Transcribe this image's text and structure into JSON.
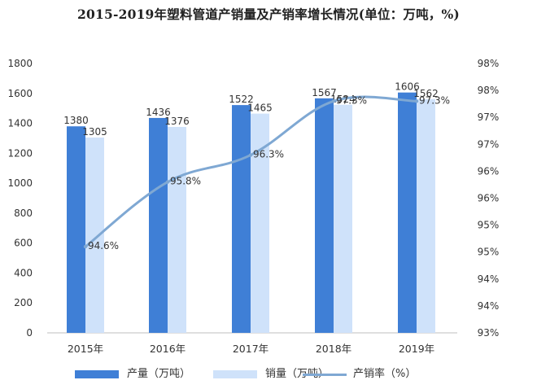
{
  "title": "2015-2019年塑料管道产销量及产销率增长情况(单位：万吨，%)",
  "chart_data": {
    "type": "bar",
    "categories": [
      "2015年",
      "2016年",
      "2017年",
      "2018年",
      "2019年"
    ],
    "series": [
      {
        "name": "产量（万吨）",
        "type": "bar",
        "axis": "left",
        "values": [
          1380,
          1436,
          1522,
          1567,
          1606
        ],
        "color": "#3f7fd6"
      },
      {
        "name": "销量（万吨）",
        "type": "bar",
        "axis": "left",
        "values": [
          1305,
          1376,
          1465,
          1524,
          1562
        ],
        "color": "#cfe2fa"
      },
      {
        "name": "产销率（%）",
        "type": "line",
        "axis": "right",
        "values": [
          94.6,
          95.8,
          96.3,
          97.3,
          97.3
        ],
        "labels": [
          "94.6%",
          "95.8%",
          "96.3%",
          "97.3%",
          "97.3%"
        ],
        "color": "#7fa8d3"
      }
    ],
    "y_left": {
      "min": 0,
      "max": 1800,
      "ticks": [
        "0",
        "200",
        "400",
        "600",
        "800",
        "1000",
        "1200",
        "1400",
        "1600",
        "1800"
      ]
    },
    "y_right": {
      "min": 93,
      "max": 98,
      "ticks": [
        "93%",
        "94%",
        "94%",
        "95%",
        "95%",
        "96%",
        "96%",
        "97%",
        "97%",
        "98%",
        "98%"
      ]
    },
    "grid": false,
    "legend_position": "bottom"
  }
}
